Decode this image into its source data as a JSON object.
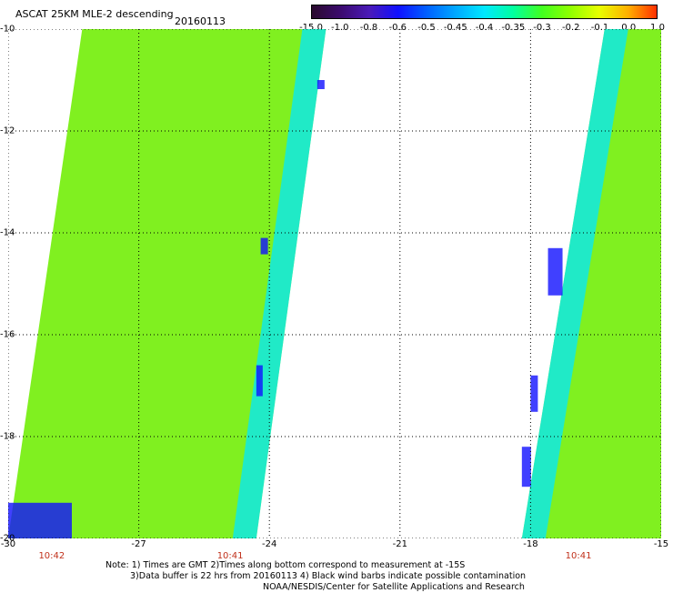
{
  "header": {
    "title": "ASCAT 25KM MLE-2 descending",
    "date": "20160113"
  },
  "colorbar": {
    "labels": [
      "-15.0",
      "-1.0",
      "-0.8",
      "-0.6",
      "-0.5",
      "-0.45",
      "-0.4",
      "-0.35",
      "-0.3",
      "-0.2",
      "-0.1",
      "0.0",
      "1.0"
    ],
    "colors": [
      "#2a0a2e",
      "#3b0a6e",
      "#4a1ab8",
      "#1010ff",
      "#0060ff",
      "#00a8ff",
      "#00e8ff",
      "#00ffa0",
      "#40ff20",
      "#90ff00",
      "#e8ff00",
      "#ffb000",
      "#ff3000"
    ]
  },
  "map": {
    "lon_range": [
      -30,
      -15
    ],
    "lat_range": [
      -20,
      -10
    ],
    "lat_ticks": [
      "-10",
      "-12",
      "-14",
      "-16",
      "-18",
      "-20"
    ],
    "lon_ticks": [
      "-30",
      "-27",
      "-24",
      "-21",
      "-18",
      "-15"
    ],
    "time_labels": [
      {
        "lon": -29,
        "text": "10:42"
      },
      {
        "lon": -24.9,
        "text": "10:41"
      },
      {
        "lon": -16.9,
        "text": "10:41"
      }
    ],
    "swaths": [
      {
        "name": "left swath",
        "lon_west_top": -28.3,
        "lon_east_top": -22.7,
        "lon_west_bottom": -30,
        "lon_east_bottom": -24.3
      },
      {
        "name": "right swath",
        "lon_west_top": -16.3,
        "lon_east_top": -15,
        "lon_west_bottom": -18.2,
        "lon_east_bottom": -15
      }
    ],
    "background_color": "#80f020",
    "edge_color": "#00e8ff",
    "strong_edge_color": "#1010ff"
  },
  "notes": {
    "line1": "Note: 1) Times are GMT 2)Times along bottom correspond to measurement at -15S",
    "line2": "3)Data buffer is 22 hrs from 20160113 4) Black wind barbs indicate possible contamination",
    "line3": "NOAA/NESDIS/Center for Satellite Applications and Research"
  }
}
